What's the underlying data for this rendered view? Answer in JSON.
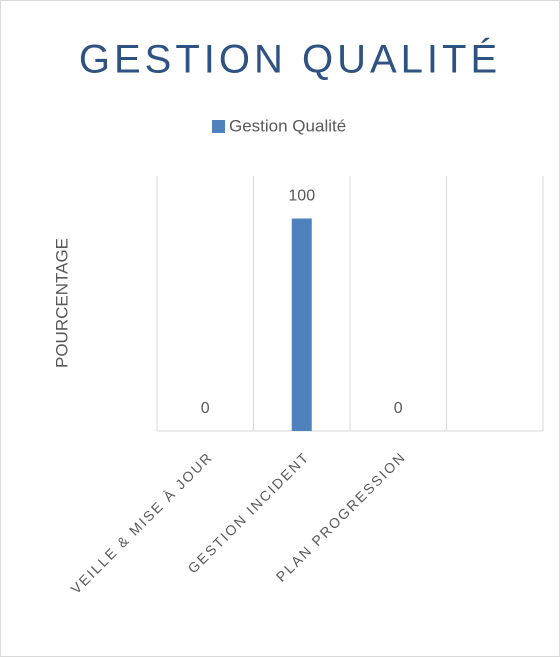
{
  "chart_data": {
    "type": "bar",
    "title": "GESTION QUALITÉ",
    "y_label": "POURCENTAGE",
    "categories": [
      "VEILLE & MISE À JOUR",
      "GESTION INCIDENT",
      "PLAN PROGRESSION",
      null
    ],
    "series": [
      {
        "name": "Gestion Qualité",
        "color": "#4f81bd",
        "values": [
          0,
          100,
          0,
          null
        ]
      }
    ],
    "ylim": [
      0,
      120
    ],
    "grid": true,
    "legend": "top"
  }
}
